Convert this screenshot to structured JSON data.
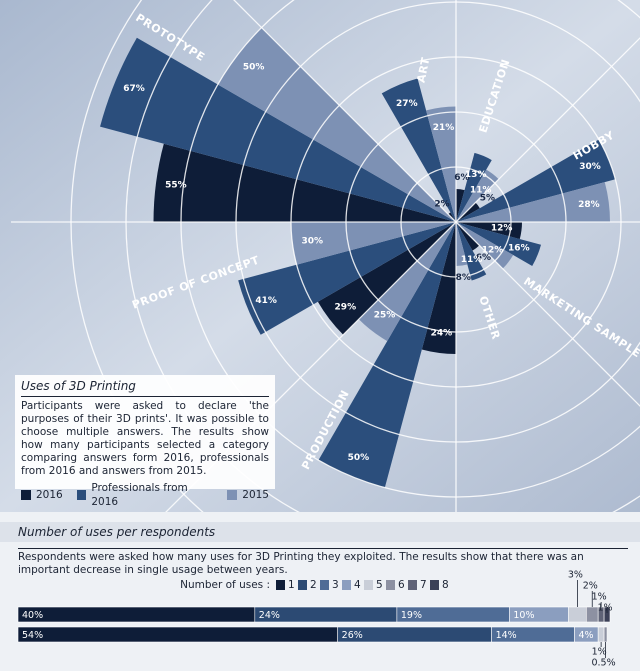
{
  "chart_data": [
    {
      "type": "polar_bar",
      "title": "Uses of 3D Printing",
      "description": "Participants were asked to declare 'the purposes of their 3D prints'. It was possible to choose multiple answers. The results show how many participants selected a category comparing answers form 2016, professionals from 2016 and answers from 2015.",
      "categories": [
        "PROTOTYPE",
        "ART",
        "EDUCATION",
        "HOBBY",
        "MARKETING SAMPLE",
        "OTHER",
        "PRODUCTION",
        "PROOF OF CONCEPT"
      ],
      "series": [
        {
          "name": "2016",
          "color": "#0e1d38",
          "values": [
            55,
            2,
            6,
            5,
            12,
            6,
            24,
            29
          ],
          "value_labels": [
            "55%",
            "2%",
            "6%",
            "5%",
            "12%",
            "6%",
            "24%",
            "29%"
          ]
        },
        {
          "name": "Professionals from 2016",
          "color": "#2b4e7c",
          "values": [
            67,
            27,
            13,
            30,
            16,
            11,
            50,
            41
          ],
          "value_labels": [
            "67%",
            "27%",
            "13%",
            "30%",
            "16%",
            "11%",
            "50%",
            "41%"
          ]
        },
        {
          "name": "2015",
          "color": "#7d91b4",
          "values": [
            50,
            21,
            11,
            28,
            12,
            8,
            25,
            30
          ],
          "value_labels": [
            "50%",
            "21%",
            "11%",
            "28%",
            "12%",
            "8%",
            "25%",
            "30%"
          ]
        }
      ],
      "rlim": [
        0,
        70
      ],
      "rticks": [
        10,
        20,
        30,
        40,
        50,
        60,
        70
      ]
    },
    {
      "type": "stacked_barh",
      "title": "Number of uses per respondents",
      "description": "Respondents were asked how many uses for 3D Printing they exploited. The results show that there was an important decrease in single usage between years.",
      "legend_title": "Number of uses :",
      "xlim": [
        0,
        100
      ],
      "series": [
        {
          "name": "1",
          "color": "#0e1d38",
          "values": [
            40,
            54
          ],
          "value_labels": [
            "40%",
            "54%"
          ]
        },
        {
          "name": "2",
          "color": "#2c4a73",
          "values": [
            24,
            26
          ],
          "value_labels": [
            "24%",
            "26%"
          ]
        },
        {
          "name": "3",
          "color": "#4f6c96",
          "values": [
            19,
            14
          ],
          "value_labels": [
            "19%",
            "14%"
          ]
        },
        {
          "name": "4",
          "color": "#8b9ebf",
          "values": [
            10,
            4
          ],
          "value_labels": [
            "10%",
            "4%"
          ]
        },
        {
          "name": "5",
          "color": "#c9ced8",
          "values": [
            3,
            1
          ],
          "value_labels": [
            "3%",
            "1%"
          ]
        },
        {
          "name": "6",
          "color": "#8d91a2",
          "values": [
            2,
            0.5
          ],
          "value_labels": [
            "2%",
            "0.5%"
          ]
        },
        {
          "name": "7",
          "color": "#5f6377",
          "values": [
            1,
            null
          ],
          "value_labels": [
            "1%",
            null
          ]
        },
        {
          "name": "8",
          "color": "#3b4057",
          "values": [
            1,
            null
          ],
          "value_labels": [
            "1%",
            null
          ]
        }
      ]
    }
  ]
}
